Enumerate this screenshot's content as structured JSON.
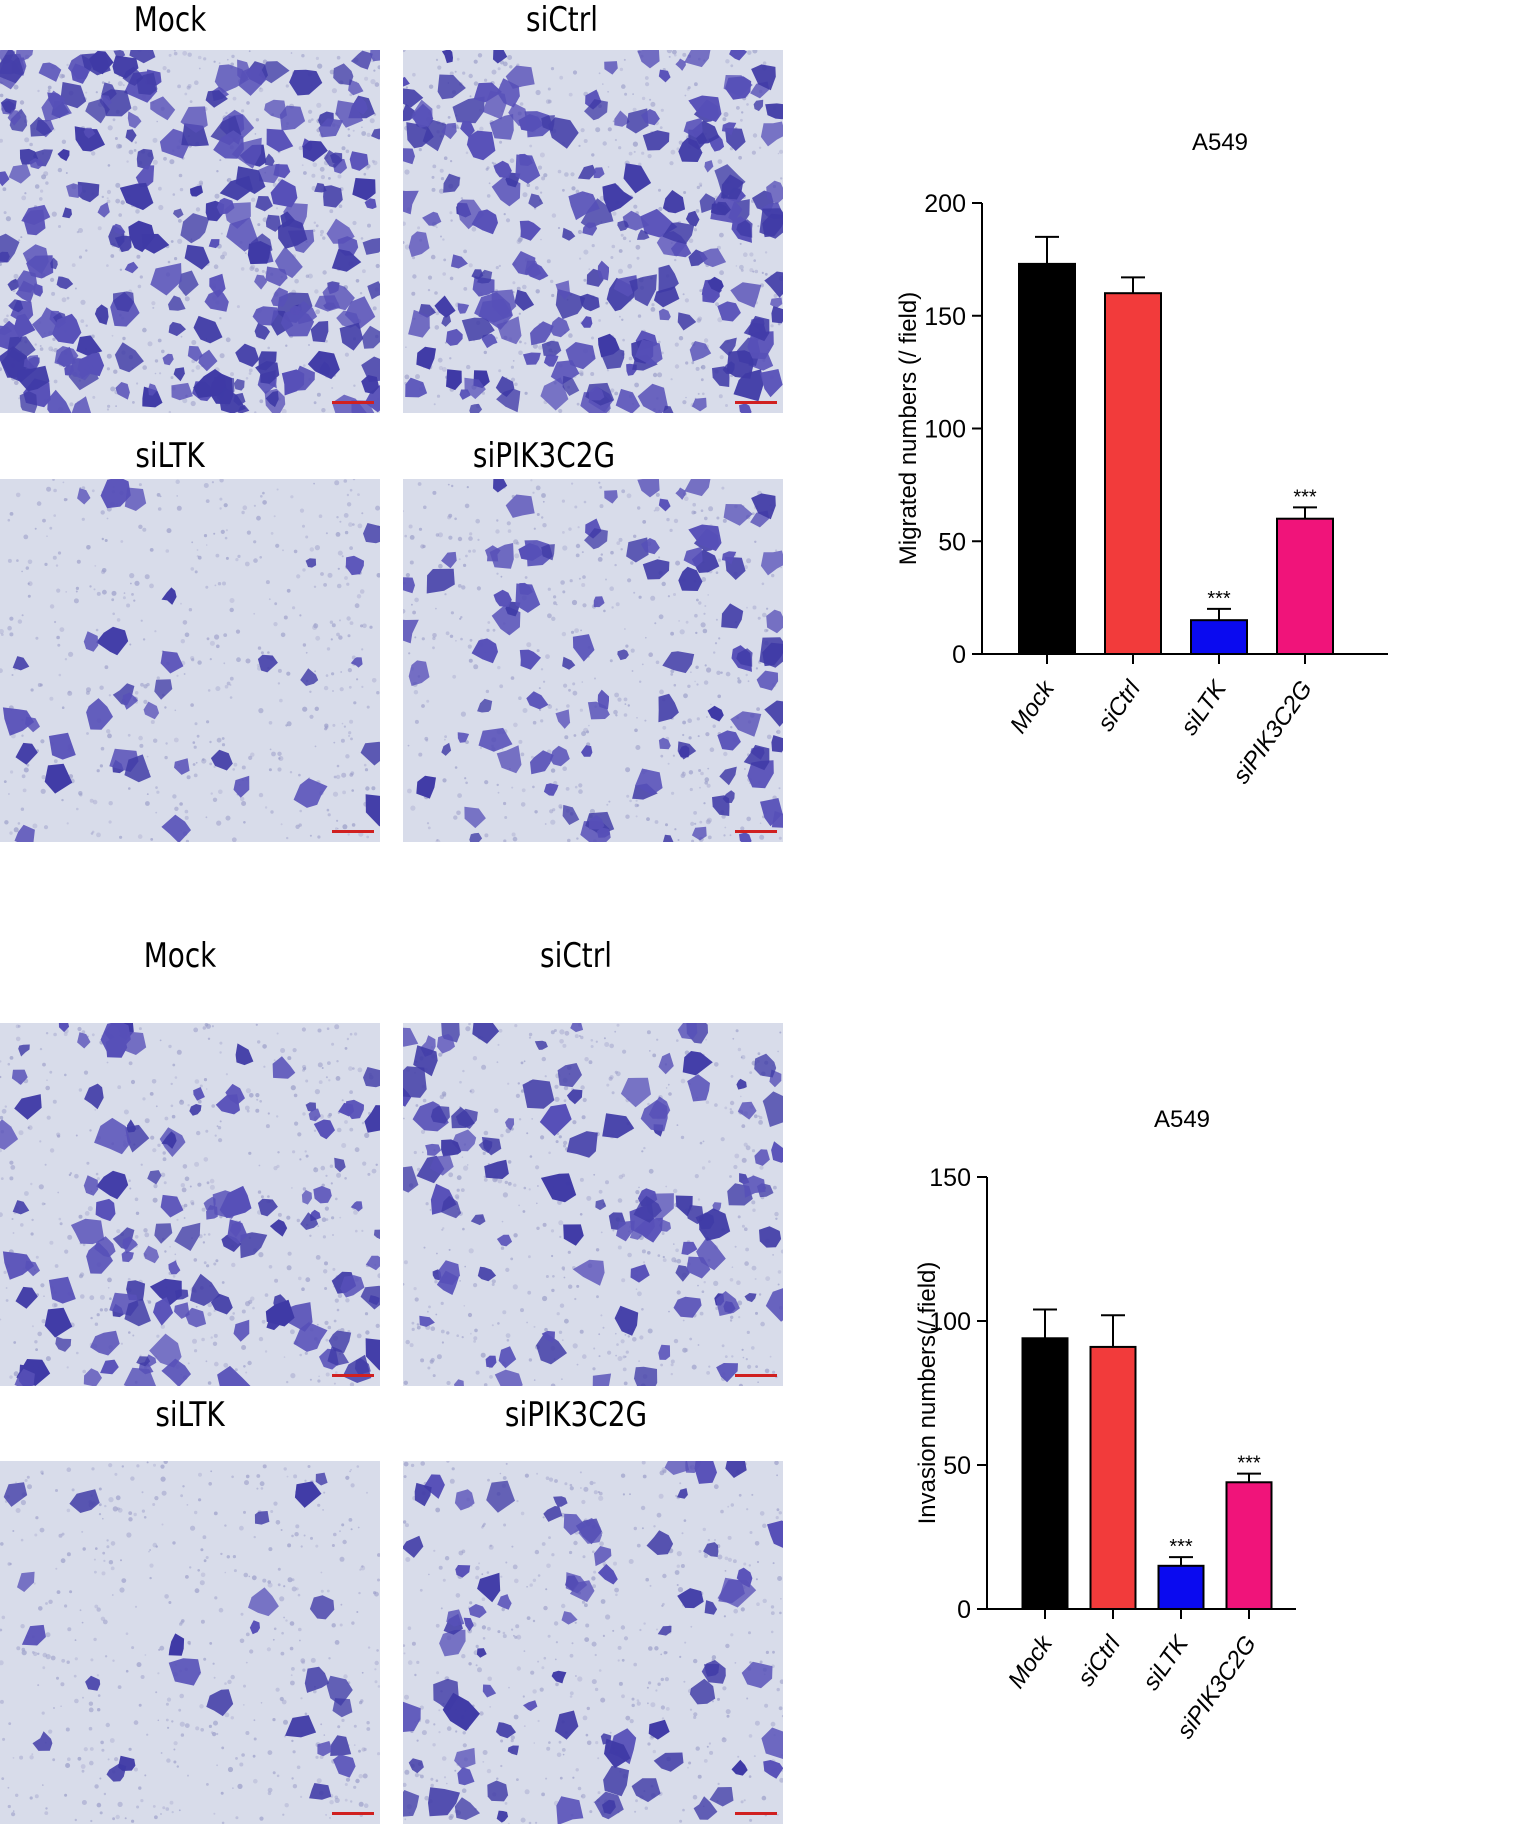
{
  "figures": [
    {
      "labels": [
        "Mock",
        "siCtrl",
        "siLTK",
        "siPIK3C2G"
      ]
    },
    {
      "labels": [
        "Mock",
        "siCtrl",
        "siLTK",
        "siPIK3C2G"
      ]
    }
  ],
  "colors": {
    "Mock": "#000000",
    "siCtrl": "#f23b3b",
    "siLTK": "#0a0af0",
    "siPIK3C2G": "#f0147a",
    "stain": "#4b46b4"
  },
  "chart_data": [
    {
      "type": "bar",
      "title": "A549",
      "ylabel": "Migrated numbers (/ field)",
      "xlabel": "",
      "categories": [
        "Mock",
        "siCtrl",
        "siLTK",
        "siPIK3C2G"
      ],
      "values": [
        173,
        160,
        15,
        60
      ],
      "errors": [
        12,
        7,
        5,
        5
      ],
      "significance": [
        "",
        "",
        "***",
        "***"
      ],
      "ylim": [
        0,
        200
      ],
      "yticks": [
        0,
        50,
        100,
        150,
        200
      ]
    },
    {
      "type": "bar",
      "title": "A549",
      "ylabel": "Invasion numbers(/ field)",
      "xlabel": "",
      "categories": [
        "Mock",
        "siCtrl",
        "siLTK",
        "siPIK3C2G"
      ],
      "values": [
        94,
        91,
        15,
        44
      ],
      "errors": [
        10,
        11,
        3,
        3
      ],
      "significance": [
        "",
        "",
        "***",
        "***"
      ],
      "ylim": [
        0,
        150
      ],
      "yticks": [
        0,
        50,
        100,
        150
      ]
    }
  ]
}
